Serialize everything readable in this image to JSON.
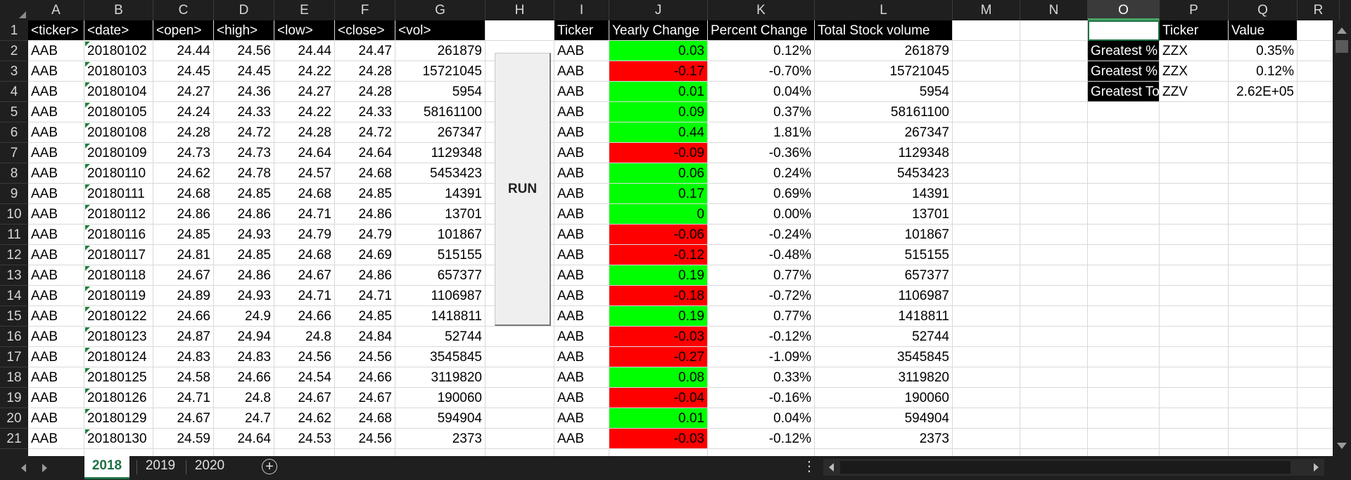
{
  "columns": [
    "A",
    "B",
    "C",
    "D",
    "E",
    "F",
    "G",
    "H",
    "I",
    "J",
    "K",
    "L",
    "M",
    "N",
    "O",
    "P",
    "Q",
    "R"
  ],
  "selected_column": "O",
  "rows": [
    "1",
    "2",
    "3",
    "4",
    "5",
    "6",
    "7",
    "8",
    "9",
    "10",
    "11",
    "12",
    "13",
    "14",
    "15",
    "16",
    "17",
    "18",
    "19",
    "20",
    "21"
  ],
  "headers": {
    "ticker": "<ticker>",
    "date": "<date>",
    "open": "<open>",
    "high": "<high>",
    "low": "<low>",
    "close": "<close>",
    "vol": "<vol>",
    "summary_ticker": "Ticker",
    "yearly_change": "Yearly Change",
    "percent_change": "Percent Change",
    "total_volume": "Total Stock volume"
  },
  "data_rows": [
    {
      "ticker": "AAB",
      "date": "20180102",
      "open": "24.44",
      "high": "24.56",
      "low": "24.44",
      "close": "24.47",
      "vol": "261879",
      "s_ticker": "AAB",
      "change": "0.03",
      "pct": "0.12%",
      "total": "261879",
      "color": "green"
    },
    {
      "ticker": "AAB",
      "date": "20180103",
      "open": "24.45",
      "high": "24.45",
      "low": "24.22",
      "close": "24.28",
      "vol": "15721045",
      "s_ticker": "AAB",
      "change": "-0.17",
      "pct": "-0.70%",
      "total": "15721045",
      "color": "red"
    },
    {
      "ticker": "AAB",
      "date": "20180104",
      "open": "24.27",
      "high": "24.36",
      "low": "24.27",
      "close": "24.28",
      "vol": "5954",
      "s_ticker": "AAB",
      "change": "0.01",
      "pct": "0.04%",
      "total": "5954",
      "color": "green"
    },
    {
      "ticker": "AAB",
      "date": "20180105",
      "open": "24.24",
      "high": "24.33",
      "low": "24.22",
      "close": "24.33",
      "vol": "58161100",
      "s_ticker": "AAB",
      "change": "0.09",
      "pct": "0.37%",
      "total": "58161100",
      "color": "green"
    },
    {
      "ticker": "AAB",
      "date": "20180108",
      "open": "24.28",
      "high": "24.72",
      "low": "24.28",
      "close": "24.72",
      "vol": "267347",
      "s_ticker": "AAB",
      "change": "0.44",
      "pct": "1.81%",
      "total": "267347",
      "color": "green"
    },
    {
      "ticker": "AAB",
      "date": "20180109",
      "open": "24.73",
      "high": "24.73",
      "low": "24.64",
      "close": "24.64",
      "vol": "1129348",
      "s_ticker": "AAB",
      "change": "-0.09",
      "pct": "-0.36%",
      "total": "1129348",
      "color": "red"
    },
    {
      "ticker": "AAB",
      "date": "20180110",
      "open": "24.62",
      "high": "24.78",
      "low": "24.57",
      "close": "24.68",
      "vol": "5453423",
      "s_ticker": "AAB",
      "change": "0.06",
      "pct": "0.24%",
      "total": "5453423",
      "color": "green"
    },
    {
      "ticker": "AAB",
      "date": "20180111",
      "open": "24.68",
      "high": "24.85",
      "low": "24.68",
      "close": "24.85",
      "vol": "14391",
      "s_ticker": "AAB",
      "change": "0.17",
      "pct": "0.69%",
      "total": "14391",
      "color": "green"
    },
    {
      "ticker": "AAB",
      "date": "20180112",
      "open": "24.86",
      "high": "24.86",
      "low": "24.71",
      "close": "24.86",
      "vol": "13701",
      "s_ticker": "AAB",
      "change": "0",
      "pct": "0.00%",
      "total": "13701",
      "color": "green"
    },
    {
      "ticker": "AAB",
      "date": "20180116",
      "open": "24.85",
      "high": "24.93",
      "low": "24.79",
      "close": "24.79",
      "vol": "101867",
      "s_ticker": "AAB",
      "change": "-0.06",
      "pct": "-0.24%",
      "total": "101867",
      "color": "red"
    },
    {
      "ticker": "AAB",
      "date": "20180117",
      "open": "24.81",
      "high": "24.85",
      "low": "24.68",
      "close": "24.69",
      "vol": "515155",
      "s_ticker": "AAB",
      "change": "-0.12",
      "pct": "-0.48%",
      "total": "515155",
      "color": "red"
    },
    {
      "ticker": "AAB",
      "date": "20180118",
      "open": "24.67",
      "high": "24.86",
      "low": "24.67",
      "close": "24.86",
      "vol": "657377",
      "s_ticker": "AAB",
      "change": "0.19",
      "pct": "0.77%",
      "total": "657377",
      "color": "green"
    },
    {
      "ticker": "AAB",
      "date": "20180119",
      "open": "24.89",
      "high": "24.93",
      "low": "24.71",
      "close": "24.71",
      "vol": "1106987",
      "s_ticker": "AAB",
      "change": "-0.18",
      "pct": "-0.72%",
      "total": "1106987",
      "color": "red"
    },
    {
      "ticker": "AAB",
      "date": "20180122",
      "open": "24.66",
      "high": "24.9",
      "low": "24.66",
      "close": "24.85",
      "vol": "1418811",
      "s_ticker": "AAB",
      "change": "0.19",
      "pct": "0.77%",
      "total": "1418811",
      "color": "green"
    },
    {
      "ticker": "AAB",
      "date": "20180123",
      "open": "24.87",
      "high": "24.94",
      "low": "24.8",
      "close": "24.84",
      "vol": "52744",
      "s_ticker": "AAB",
      "change": "-0.03",
      "pct": "-0.12%",
      "total": "52744",
      "color": "red"
    },
    {
      "ticker": "AAB",
      "date": "20180124",
      "open": "24.83",
      "high": "24.83",
      "low": "24.56",
      "close": "24.56",
      "vol": "3545845",
      "s_ticker": "AAB",
      "change": "-0.27",
      "pct": "-1.09%",
      "total": "3545845",
      "color": "red"
    },
    {
      "ticker": "AAB",
      "date": "20180125",
      "open": "24.58",
      "high": "24.66",
      "low": "24.54",
      "close": "24.66",
      "vol": "3119820",
      "s_ticker": "AAB",
      "change": "0.08",
      "pct": "0.33%",
      "total": "3119820",
      "color": "green"
    },
    {
      "ticker": "AAB",
      "date": "20180126",
      "open": "24.71",
      "high": "24.8",
      "low": "24.67",
      "close": "24.67",
      "vol": "190060",
      "s_ticker": "AAB",
      "change": "-0.04",
      "pct": "-0.16%",
      "total": "190060",
      "color": "red"
    },
    {
      "ticker": "AAB",
      "date": "20180129",
      "open": "24.67",
      "high": "24.7",
      "low": "24.62",
      "close": "24.68",
      "vol": "594904",
      "s_ticker": "AAB",
      "change": "0.01",
      "pct": "0.04%",
      "total": "594904",
      "color": "green"
    },
    {
      "ticker": "AAB",
      "date": "20180130",
      "open": "24.59",
      "high": "24.64",
      "low": "24.53",
      "close": "24.56",
      "vol": "2373",
      "s_ticker": "AAB",
      "change": "-0.03",
      "pct": "-0.12%",
      "total": "2373",
      "color": "red"
    }
  ],
  "run_button_label": "RUN",
  "summary": {
    "ticker_header": "Ticker",
    "value_header": "Value",
    "rows": [
      {
        "label": "Greatest % Increase",
        "ticker": "ZZX",
        "value": "0.35%"
      },
      {
        "label": "Greatest % Decrease",
        "ticker": "ZZX",
        "value": "0.12%"
      },
      {
        "label": "Greatest Total Volume",
        "ticker": "ZZV",
        "value": "2.62E+05"
      }
    ]
  },
  "sheet_tabs": [
    "2018",
    "2019",
    "2020"
  ],
  "active_sheet": "2018",
  "colors": {
    "positive": "#00ff00",
    "negative": "#ff0000",
    "header_bg": "#000000",
    "accent": "#1e7145"
  }
}
